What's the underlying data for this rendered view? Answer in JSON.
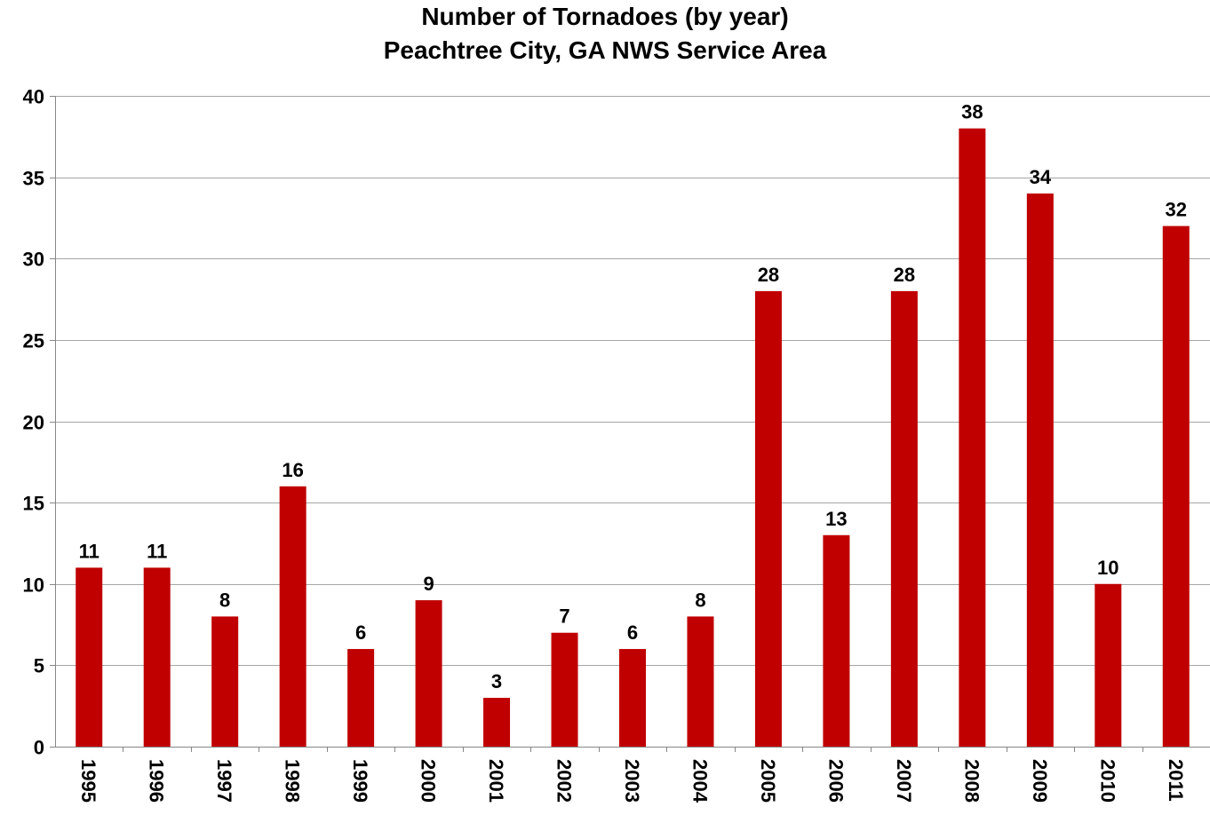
{
  "chart_data": {
    "type": "bar",
    "title": "Number of Tornadoes (by year)",
    "subtitle": "Peachtree City, GA NWS Service Area",
    "xlabel": "",
    "ylabel": "",
    "categories": [
      "1995",
      "1996",
      "1997",
      "1998",
      "1999",
      "2000",
      "2001",
      "2002",
      "2003",
      "2004",
      "2005",
      "2006",
      "2007",
      "2008",
      "2009",
      "2010",
      "2011"
    ],
    "values": [
      11,
      11,
      8,
      16,
      6,
      9,
      3,
      7,
      6,
      8,
      28,
      13,
      28,
      38,
      34,
      10,
      32
    ],
    "ylim": [
      0,
      40
    ],
    "yticks": [
      0,
      5,
      10,
      15,
      20,
      25,
      30,
      35,
      40
    ],
    "grid": true,
    "legend": "none",
    "bar_color": "#C00000",
    "gridline_color": "#a6a6a6",
    "data_labels": true
  }
}
